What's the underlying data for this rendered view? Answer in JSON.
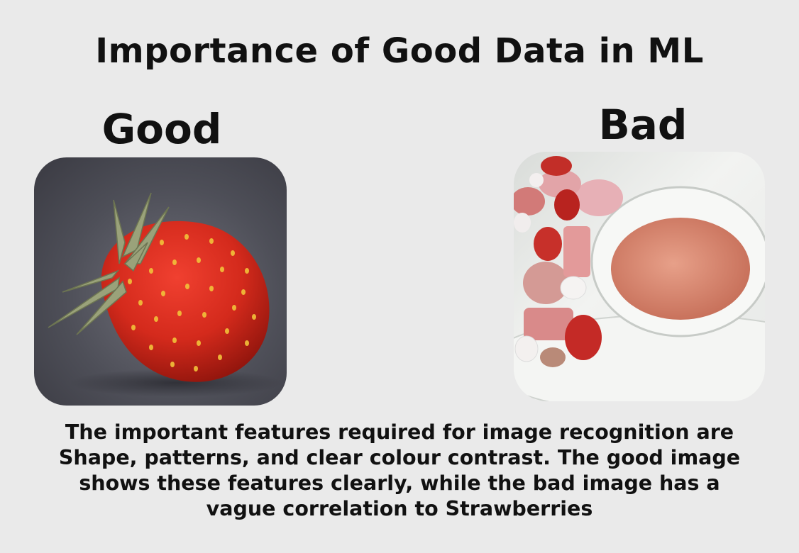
{
  "title": "Importance of Good Data in ML",
  "good": {
    "label": "Good",
    "image": "strawberry-photo"
  },
  "bad": {
    "label": "Bad",
    "image": "plate-of-pink-foods-photo"
  },
  "caption": {
    "lines": [
      "The important features required for image recognition are",
      "Shape, patterns, and clear colour contrast. The good image",
      "shows these features clearly, while the bad image has a",
      "vague correlation to Strawberries"
    ]
  }
}
